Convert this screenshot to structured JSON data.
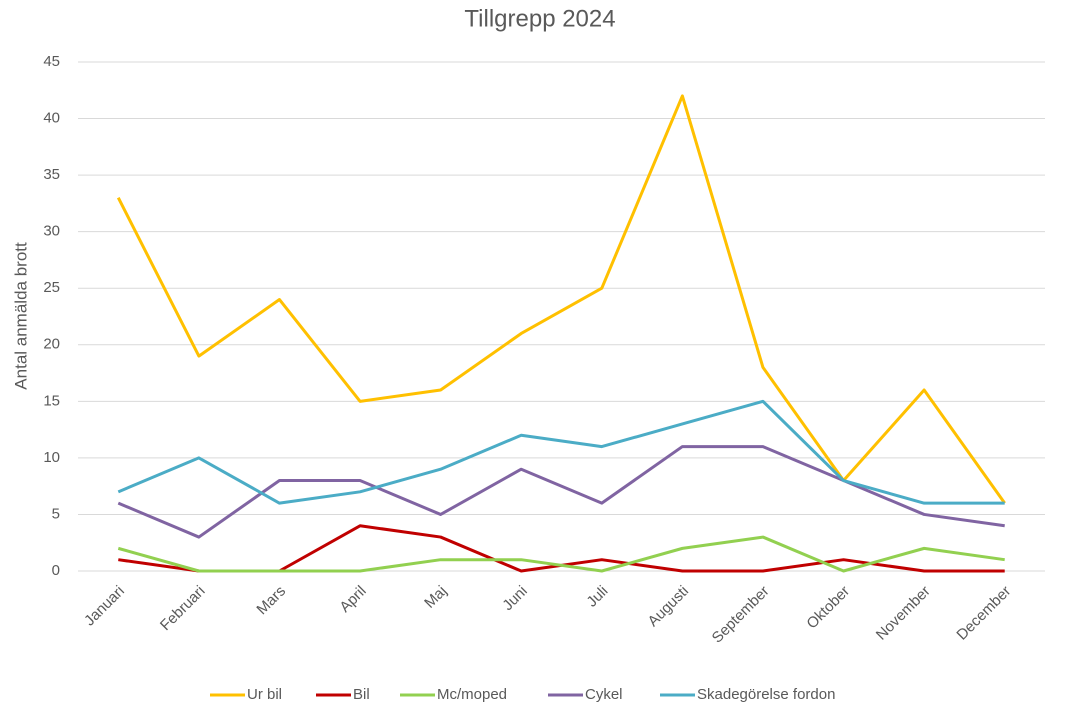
{
  "chart_data": {
    "type": "line",
    "title": "Tillgrepp 2024",
    "y_label": "Antal anmälda brott",
    "categories": [
      "Januari",
      "Februari",
      "Mars",
      "April",
      "Maj",
      "Juni",
      "Juli",
      "Augusti",
      "September",
      "Oktober",
      "November",
      "December"
    ],
    "series": [
      {
        "name": "Ur bil",
        "color": "#ffc000",
        "values": [
          33,
          19,
          24,
          15,
          16,
          21,
          25,
          42,
          18,
          8,
          16,
          6
        ]
      },
      {
        "name": "Bil",
        "color": "#c00000",
        "values": [
          1,
          0,
          0,
          4,
          3,
          0,
          1,
          0,
          0,
          1,
          0,
          0
        ]
      },
      {
        "name": "Mc/moped",
        "color": "#92d050",
        "values": [
          2,
          0,
          0,
          0,
          1,
          1,
          0,
          2,
          3,
          0,
          2,
          1
        ]
      },
      {
        "name": "Cykel",
        "color": "#8064a2",
        "values": [
          6,
          3,
          8,
          8,
          5,
          9,
          6,
          11,
          11,
          8,
          5,
          4
        ]
      },
      {
        "name": "Skadegörelse fordon",
        "color": "#4bacc6",
        "values": [
          7,
          10,
          6,
          7,
          9,
          12,
          11,
          13,
          15,
          8,
          6,
          6
        ]
      }
    ],
    "ylim": [
      0,
      45
    ],
    "yticks": [
      0,
      5,
      10,
      15,
      20,
      25,
      30,
      35,
      40,
      45
    ],
    "grid": true,
    "legend": "bottom"
  }
}
